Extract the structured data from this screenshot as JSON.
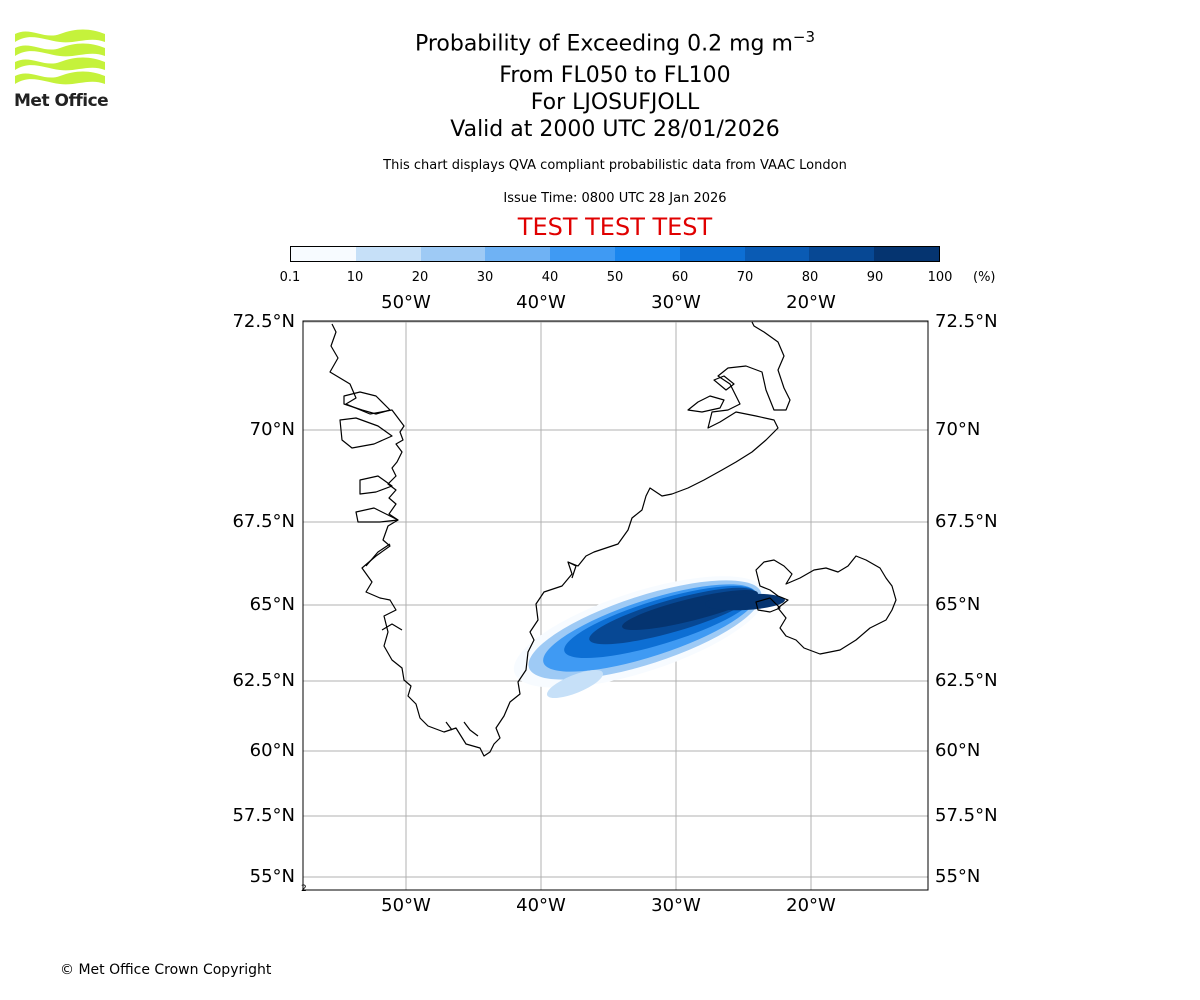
{
  "logo": {
    "text": "Met Office"
  },
  "header": {
    "title_prefix": "Probability of Exceeding 0.2 mg m",
    "title_exponent": "−3",
    "line2": "From FL050 to FL100",
    "line3": "For LJOSUFJOLL",
    "line4": "Valid at 2000 UTC 28/01/2026",
    "subtitle": "This chart displays QVA compliant probabilistic data from VAAC London",
    "issue_time": "Issue Time: 0800 UTC 28 Jan 2026",
    "test_banner": "TEST TEST TEST"
  },
  "colorbar": {
    "ticks": [
      "0.1",
      "10",
      "20",
      "30",
      "40",
      "50",
      "60",
      "70",
      "80",
      "90",
      "100"
    ],
    "unit": "(%)",
    "colors": [
      "#f7fbff",
      "#c6e0f8",
      "#9ecaf5",
      "#6fb2f4",
      "#3f9af3",
      "#1a86ee",
      "#0d6fd4",
      "#0a5bb4",
      "#074894",
      "#053470"
    ]
  },
  "map": {
    "lon_labels": [
      "50°W",
      "40°W",
      "30°W",
      "20°W"
    ],
    "lat_labels": [
      "72.5°N",
      "70°N",
      "67.5°N",
      "65°N",
      "62.5°N",
      "60°N",
      "57.5°N",
      "55°N"
    ],
    "source_marker": "2",
    "colors": {
      "coastline": "#000000",
      "grid": "#b0b0b0",
      "frame": "#000000"
    }
  },
  "footer": {
    "copyright": "© Met Office Crown Copyright"
  }
}
